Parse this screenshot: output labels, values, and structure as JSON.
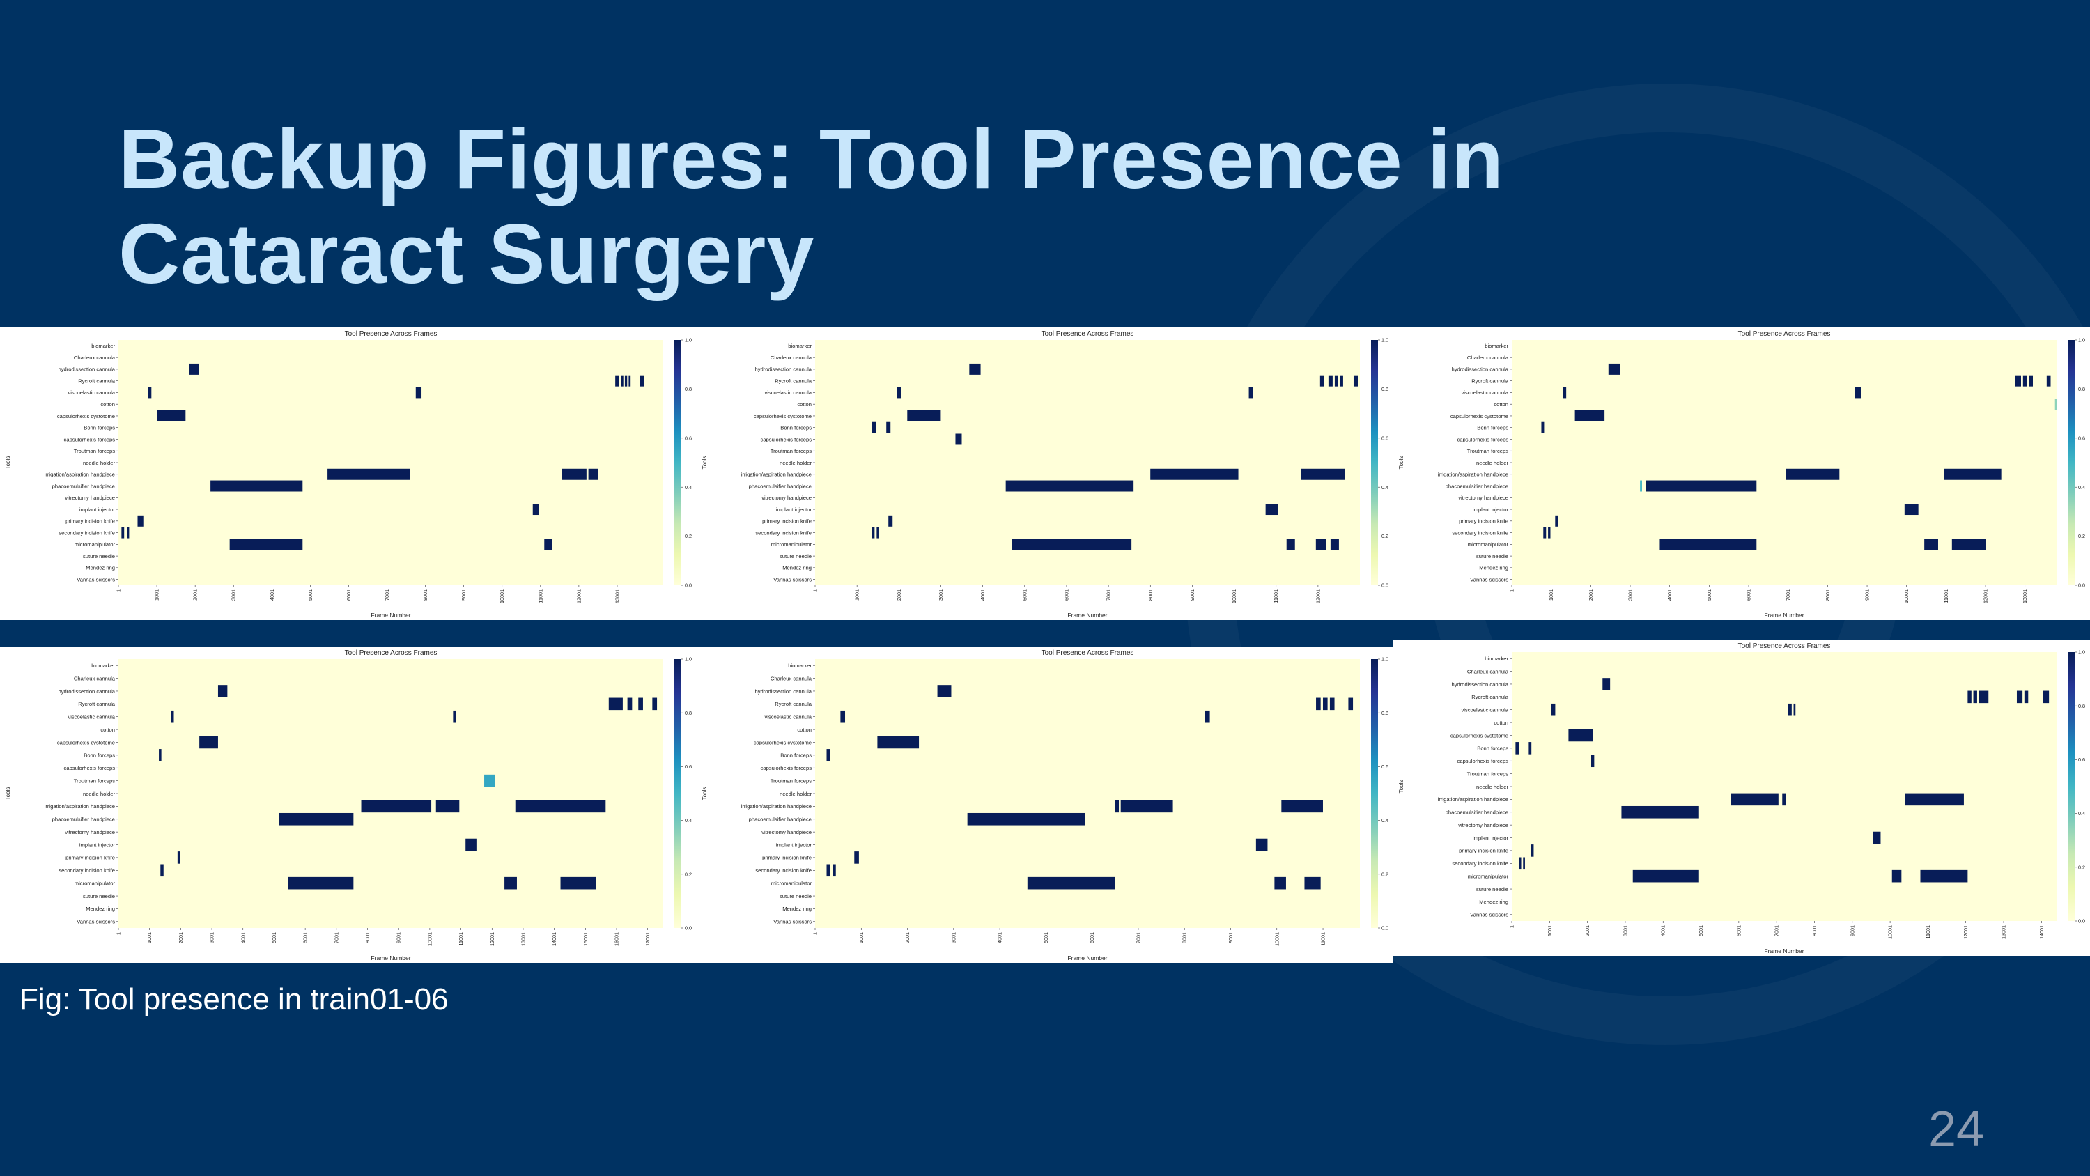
{
  "slide": {
    "title": "Backup Figures: Tool Presence in Cataract Surgery",
    "caption": "Fig: Tool presence in train01-06",
    "page_number": "24"
  },
  "colors": {
    "background": "#003262",
    "title": "#c8e6fb",
    "heatmap_low": "#ffffd9",
    "heatmap_high": "#081d58"
  },
  "chart_data": [
    {
      "type": "heatmap",
      "title": "Tool Presence Across Frames",
      "xlabel": "Frame Number",
      "ylabel": "Tools",
      "tools": [
        "biomarker",
        "Charleux cannula",
        "hydrodissection cannula",
        "Rycroft cannula",
        "viscoelastic cannula",
        "cotton",
        "capsulorhexis cystotome",
        "Bonn forceps",
        "capsulorhexis forceps",
        "Troutman forceps",
        "needle holder",
        "irrigation/aspiration handpiece",
        "phacoemulsifier handpiece",
        "vitrectomy handpiece",
        "implant injector",
        "primary incision knife",
        "secondary incision knife",
        "micromanipulator",
        "suture needle",
        "Mendez ring",
        "Vannas scissors"
      ],
      "xlim": [
        1,
        14200
      ],
      "x_ticks": [
        1,
        1001,
        2001,
        3001,
        4001,
        5001,
        6001,
        7001,
        8001,
        9001,
        10001,
        11001,
        12001,
        13001
      ],
      "colorbar_range": [
        0,
        1
      ],
      "colorbar_ticks": [
        "0.0",
        "0.2",
        "0.4",
        "0.6",
        "0.8",
        "1.0"
      ],
      "presence": [
        {
          "tool": 2,
          "start": 1850,
          "end": 2100
        },
        {
          "tool": 3,
          "start": 12950,
          "end": 13050
        },
        {
          "tool": 3,
          "start": 13100,
          "end": 13160
        },
        {
          "tool": 3,
          "start": 13200,
          "end": 13260
        },
        {
          "tool": 3,
          "start": 13300,
          "end": 13350
        },
        {
          "tool": 3,
          "start": 13600,
          "end": 13700
        },
        {
          "tool": 4,
          "start": 780,
          "end": 860
        },
        {
          "tool": 4,
          "start": 7750,
          "end": 7900
        },
        {
          "tool": 6,
          "start": 1000,
          "end": 1750
        },
        {
          "tool": 11,
          "start": 5450,
          "end": 7600
        },
        {
          "tool": 11,
          "start": 11550,
          "end": 12200
        },
        {
          "tool": 11,
          "start": 12250,
          "end": 12500
        },
        {
          "tool": 12,
          "start": 2400,
          "end": 4800
        },
        {
          "tool": 14,
          "start": 10800,
          "end": 10950
        },
        {
          "tool": 15,
          "start": 500,
          "end": 650
        },
        {
          "tool": 16,
          "start": 80,
          "end": 150
        },
        {
          "tool": 16,
          "start": 220,
          "end": 280
        },
        {
          "tool": 17,
          "start": 2900,
          "end": 4800
        },
        {
          "tool": 17,
          "start": 11100,
          "end": 11300
        }
      ]
    },
    {
      "type": "heatmap",
      "title": "Tool Presence Across Frames",
      "xlabel": "Frame Number",
      "ylabel": "Tools",
      "tools": [
        "biomarker",
        "Charleux cannula",
        "hydrodissection cannula",
        "Rycroft cannula",
        "viscoelastic cannula",
        "cotton",
        "capsulorhexis cystotome",
        "Bonn forceps",
        "capsulorhexis forceps",
        "Troutman forceps",
        "needle holder",
        "irrigation/aspiration handpiece",
        "phacoemulsifier handpiece",
        "vitrectomy handpiece",
        "implant injector",
        "primary incision knife",
        "secondary incision knife",
        "micromanipulator",
        "suture needle",
        "Mendez ring",
        "Vannas scissors"
      ],
      "xlim": [
        1,
        13000
      ],
      "x_ticks": [
        1,
        1001,
        2001,
        3001,
        4001,
        5001,
        6001,
        7001,
        8001,
        9001,
        10001,
        11001,
        12001
      ],
      "colorbar_range": [
        0,
        1
      ],
      "colorbar_ticks": [
        "0.0",
        "0.2",
        "0.4",
        "0.6",
        "0.8",
        "1.0"
      ],
      "presence": [
        {
          "tool": 2,
          "start": 3680,
          "end": 3950
        },
        {
          "tool": 3,
          "start": 12050,
          "end": 12150
        },
        {
          "tool": 3,
          "start": 12250,
          "end": 12350
        },
        {
          "tool": 3,
          "start": 12400,
          "end": 12480
        },
        {
          "tool": 3,
          "start": 12520,
          "end": 12600
        },
        {
          "tool": 3,
          "start": 12850,
          "end": 12950
        },
        {
          "tool": 4,
          "start": 1950,
          "end": 2050
        },
        {
          "tool": 4,
          "start": 10350,
          "end": 10450
        },
        {
          "tool": 6,
          "start": 2200,
          "end": 3000
        },
        {
          "tool": 7,
          "start": 1350,
          "end": 1450
        },
        {
          "tool": 7,
          "start": 1700,
          "end": 1800
        },
        {
          "tool": 8,
          "start": 3350,
          "end": 3500
        },
        {
          "tool": 11,
          "start": 8000,
          "end": 10100
        },
        {
          "tool": 11,
          "start": 11600,
          "end": 12650
        },
        {
          "tool": 12,
          "start": 4550,
          "end": 7600
        },
        {
          "tool": 14,
          "start": 10750,
          "end": 11050
        },
        {
          "tool": 15,
          "start": 1750,
          "end": 1850
        },
        {
          "tool": 16,
          "start": 1350,
          "end": 1420
        },
        {
          "tool": 16,
          "start": 1470,
          "end": 1530
        },
        {
          "tool": 17,
          "start": 4700,
          "end": 7550
        },
        {
          "tool": 17,
          "start": 11250,
          "end": 11450
        },
        {
          "tool": 17,
          "start": 11950,
          "end": 12200
        },
        {
          "tool": 17,
          "start": 12300,
          "end": 12500
        }
      ]
    },
    {
      "type": "heatmap",
      "title": "Tool Presence Across Frames",
      "xlabel": "Frame Number",
      "ylabel": "Tools",
      "tools": [
        "biomarker",
        "Charleux cannula",
        "hydrodissection cannula",
        "Rycroft cannula",
        "viscoelastic cannula",
        "cotton",
        "capsulorhexis cystotome",
        "Bonn forceps",
        "capsulorhexis forceps",
        "Troutman forceps",
        "needle holder",
        "irrigation/aspiration handpiece",
        "phacoemulsifier handpiece",
        "vitrectomy handpiece",
        "implant injector",
        "primary incision knife",
        "secondary incision knife",
        "micromanipulator",
        "suture needle",
        "Mendez ring",
        "Vannas scissors"
      ],
      "xlim": [
        1,
        13800
      ],
      "x_ticks": [
        1,
        1001,
        2001,
        3001,
        4001,
        5001,
        6001,
        7001,
        8001,
        9001,
        10001,
        11001,
        12001,
        13001
      ],
      "colorbar_range": [
        0,
        1
      ],
      "colorbar_ticks": [
        "0.0",
        "0.2",
        "0.4",
        "0.6",
        "0.8",
        "1.0"
      ],
      "presence": [
        {
          "tool": 2,
          "start": 2450,
          "end": 2750
        },
        {
          "tool": 3,
          "start": 12750,
          "end": 12900
        },
        {
          "tool": 3,
          "start": 12950,
          "end": 13050
        },
        {
          "tool": 3,
          "start": 13100,
          "end": 13200
        },
        {
          "tool": 3,
          "start": 13550,
          "end": 13650
        },
        {
          "tool": 4,
          "start": 1300,
          "end": 1380
        },
        {
          "tool": 4,
          "start": 8700,
          "end": 8850
        },
        {
          "tool": 5,
          "start": 13760,
          "end": 13800,
          "value": 0.35
        },
        {
          "tool": 6,
          "start": 1600,
          "end": 2350
        },
        {
          "tool": 7,
          "start": 750,
          "end": 820
        },
        {
          "tool": 11,
          "start": 6950,
          "end": 8300
        },
        {
          "tool": 11,
          "start": 10950,
          "end": 12400
        },
        {
          "tool": 12,
          "start": 3250,
          "end": 3300,
          "value": 0.5
        },
        {
          "tool": 12,
          "start": 3400,
          "end": 6200
        },
        {
          "tool": 14,
          "start": 9950,
          "end": 10300
        },
        {
          "tool": 15,
          "start": 1100,
          "end": 1180
        },
        {
          "tool": 16,
          "start": 800,
          "end": 870
        },
        {
          "tool": 16,
          "start": 920,
          "end": 980
        },
        {
          "tool": 17,
          "start": 3750,
          "end": 6200
        },
        {
          "tool": 17,
          "start": 10450,
          "end": 10800
        },
        {
          "tool": 17,
          "start": 11150,
          "end": 12000
        }
      ]
    },
    {
      "type": "heatmap",
      "title": "Tool Presence Across Frames",
      "xlabel": "Frame Number",
      "ylabel": "Tools",
      "tools": [
        "biomarker",
        "Charleux cannula",
        "hydrodissection cannula",
        "Rycroft cannula",
        "viscoelastic cannula",
        "cotton",
        "capsulorhexis cystotome",
        "Bonn forceps",
        "capsulorhexis forceps",
        "Troutman forceps",
        "needle holder",
        "irrigation/aspiration handpiece",
        "phacoemulsifier handpiece",
        "vitrectomy handpiece",
        "implant injector",
        "primary incision knife",
        "secondary incision knife",
        "micromanipulator",
        "suture needle",
        "Mendez ring",
        "Vannas scissors"
      ],
      "xlim": [
        1,
        17500
      ],
      "x_ticks": [
        1,
        1001,
        2001,
        3001,
        4001,
        5001,
        6001,
        7001,
        8001,
        9001,
        10001,
        11001,
        12001,
        13001,
        14001,
        15001,
        16001,
        17001
      ],
      "colorbar_range": [
        0,
        1
      ],
      "colorbar_ticks": [
        "0.0",
        "0.2",
        "0.4",
        "0.6",
        "0.8",
        "1.0"
      ],
      "presence": [
        {
          "tool": 2,
          "start": 3200,
          "end": 3500
        },
        {
          "tool": 3,
          "start": 15750,
          "end": 16200
        },
        {
          "tool": 3,
          "start": 16350,
          "end": 16500
        },
        {
          "tool": 3,
          "start": 16700,
          "end": 16850
        },
        {
          "tool": 3,
          "start": 17150,
          "end": 17300
        },
        {
          "tool": 4,
          "start": 1700,
          "end": 1780
        },
        {
          "tool": 4,
          "start": 10750,
          "end": 10850
        },
        {
          "tool": 6,
          "start": 2600,
          "end": 3200
        },
        {
          "tool": 7,
          "start": 1300,
          "end": 1380
        },
        {
          "tool": 9,
          "start": 11750,
          "end": 12100,
          "value": 0.55
        },
        {
          "tool": 11,
          "start": 7800,
          "end": 10050
        },
        {
          "tool": 11,
          "start": 10200,
          "end": 10950
        },
        {
          "tool": 11,
          "start": 12750,
          "end": 15650
        },
        {
          "tool": 12,
          "start": 5150,
          "end": 7550
        },
        {
          "tool": 14,
          "start": 11150,
          "end": 11500
        },
        {
          "tool": 15,
          "start": 1900,
          "end": 1980
        },
        {
          "tool": 16,
          "start": 1350,
          "end": 1450
        },
        {
          "tool": 17,
          "start": 5450,
          "end": 7550
        },
        {
          "tool": 17,
          "start": 12400,
          "end": 12800
        },
        {
          "tool": 17,
          "start": 14200,
          "end": 15350
        }
      ]
    },
    {
      "type": "heatmap",
      "title": "Tool Presence Across Frames",
      "xlabel": "Frame Number",
      "ylabel": "Tools",
      "tools": [
        "biomarker",
        "Charleux cannula",
        "hydrodissection cannula",
        "Rycroft cannula",
        "viscoelastic cannula",
        "cotton",
        "capsulorhexis cystotome",
        "Bonn forceps",
        "capsulorhexis forceps",
        "Troutman forceps",
        "needle holder",
        "irrigation/aspiration handpiece",
        "phacoemulsifier handpiece",
        "vitrectomy handpiece",
        "implant injector",
        "primary incision knife",
        "secondary incision knife",
        "micromanipulator",
        "suture needle",
        "Mendez ring",
        "Vannas scissors"
      ],
      "xlim": [
        1,
        11800
      ],
      "x_ticks": [
        1,
        1001,
        2001,
        3001,
        4001,
        5001,
        6001,
        7001,
        8001,
        9001,
        10001,
        11001
      ],
      "colorbar_range": [
        0,
        1
      ],
      "colorbar_ticks": [
        "0.0",
        "0.2",
        "0.4",
        "0.6",
        "0.8",
        "1.0"
      ],
      "presence": [
        {
          "tool": 2,
          "start": 2650,
          "end": 2950
        },
        {
          "tool": 3,
          "start": 10850,
          "end": 10950
        },
        {
          "tool": 3,
          "start": 11000,
          "end": 11100
        },
        {
          "tool": 3,
          "start": 11150,
          "end": 11250
        },
        {
          "tool": 3,
          "start": 11550,
          "end": 11650
        },
        {
          "tool": 4,
          "start": 550,
          "end": 650
        },
        {
          "tool": 4,
          "start": 8450,
          "end": 8550
        },
        {
          "tool": 6,
          "start": 1350,
          "end": 2250
        },
        {
          "tool": 7,
          "start": 250,
          "end": 330
        },
        {
          "tool": 11,
          "start": 6500,
          "end": 6580
        },
        {
          "tool": 11,
          "start": 6620,
          "end": 7750
        },
        {
          "tool": 11,
          "start": 10100,
          "end": 11000
        },
        {
          "tool": 12,
          "start": 3300,
          "end": 5850
        },
        {
          "tool": 14,
          "start": 9550,
          "end": 9800
        },
        {
          "tool": 15,
          "start": 850,
          "end": 950
        },
        {
          "tool": 16,
          "start": 250,
          "end": 320
        },
        {
          "tool": 16,
          "start": 380,
          "end": 450
        },
        {
          "tool": 17,
          "start": 4600,
          "end": 6500
        },
        {
          "tool": 17,
          "start": 9950,
          "end": 10200
        },
        {
          "tool": 17,
          "start": 10600,
          "end": 10950
        }
      ]
    },
    {
      "type": "heatmap",
      "title": "Tool Presence Across Frames",
      "xlabel": "Frame Number",
      "ylabel": "Tools",
      "tools": [
        "biomarker",
        "Charleux cannula",
        "hydrodissection cannula",
        "Rycroft cannula",
        "viscoelastic cannula",
        "cotton",
        "capsulorhexis cystotome",
        "Bonn forceps",
        "capsulorhexis forceps",
        "Troutman forceps",
        "needle holder",
        "irrigation/aspiration handpiece",
        "phacoemulsifier handpiece",
        "vitrectomy handpiece",
        "implant injector",
        "primary incision knife",
        "secondary incision knife",
        "micromanipulator",
        "suture needle",
        "Mendez ring",
        "Vannas scissors"
      ],
      "xlim": [
        1,
        14400
      ],
      "x_ticks": [
        1,
        1001,
        2001,
        3001,
        4001,
        5001,
        6001,
        7001,
        8001,
        9001,
        10001,
        11001,
        12001,
        13001,
        14001
      ],
      "colorbar_range": [
        0,
        1
      ],
      "colorbar_ticks": [
        "0.0",
        "0.2",
        "0.4",
        "0.6",
        "0.8",
        "1.0"
      ],
      "presence": [
        {
          "tool": 2,
          "start": 2400,
          "end": 2600
        },
        {
          "tool": 3,
          "start": 12050,
          "end": 12150
        },
        {
          "tool": 3,
          "start": 12200,
          "end": 12300
        },
        {
          "tool": 3,
          "start": 12350,
          "end": 12600
        },
        {
          "tool": 3,
          "start": 13350,
          "end": 13500
        },
        {
          "tool": 3,
          "start": 13550,
          "end": 13650
        },
        {
          "tool": 3,
          "start": 14050,
          "end": 14200
        },
        {
          "tool": 4,
          "start": 1050,
          "end": 1150
        },
        {
          "tool": 4,
          "start": 7300,
          "end": 7400
        },
        {
          "tool": 4,
          "start": 7450,
          "end": 7500
        },
        {
          "tool": 6,
          "start": 1500,
          "end": 2150
        },
        {
          "tool": 7,
          "start": 100,
          "end": 200
        },
        {
          "tool": 7,
          "start": 450,
          "end": 520
        },
        {
          "tool": 8,
          "start": 2100,
          "end": 2180
        },
        {
          "tool": 11,
          "start": 5800,
          "end": 7050
        },
        {
          "tool": 11,
          "start": 7150,
          "end": 7250
        },
        {
          "tool": 11,
          "start": 10400,
          "end": 11950
        },
        {
          "tool": 12,
          "start": 2900,
          "end": 4950
        },
        {
          "tool": 14,
          "start": 9550,
          "end": 9750
        },
        {
          "tool": 15,
          "start": 500,
          "end": 580
        },
        {
          "tool": 16,
          "start": 200,
          "end": 250
        },
        {
          "tool": 16,
          "start": 300,
          "end": 350
        },
        {
          "tool": 17,
          "start": 3200,
          "end": 4950
        },
        {
          "tool": 17,
          "start": 10050,
          "end": 10300
        },
        {
          "tool": 17,
          "start": 10800,
          "end": 12050
        }
      ]
    }
  ]
}
